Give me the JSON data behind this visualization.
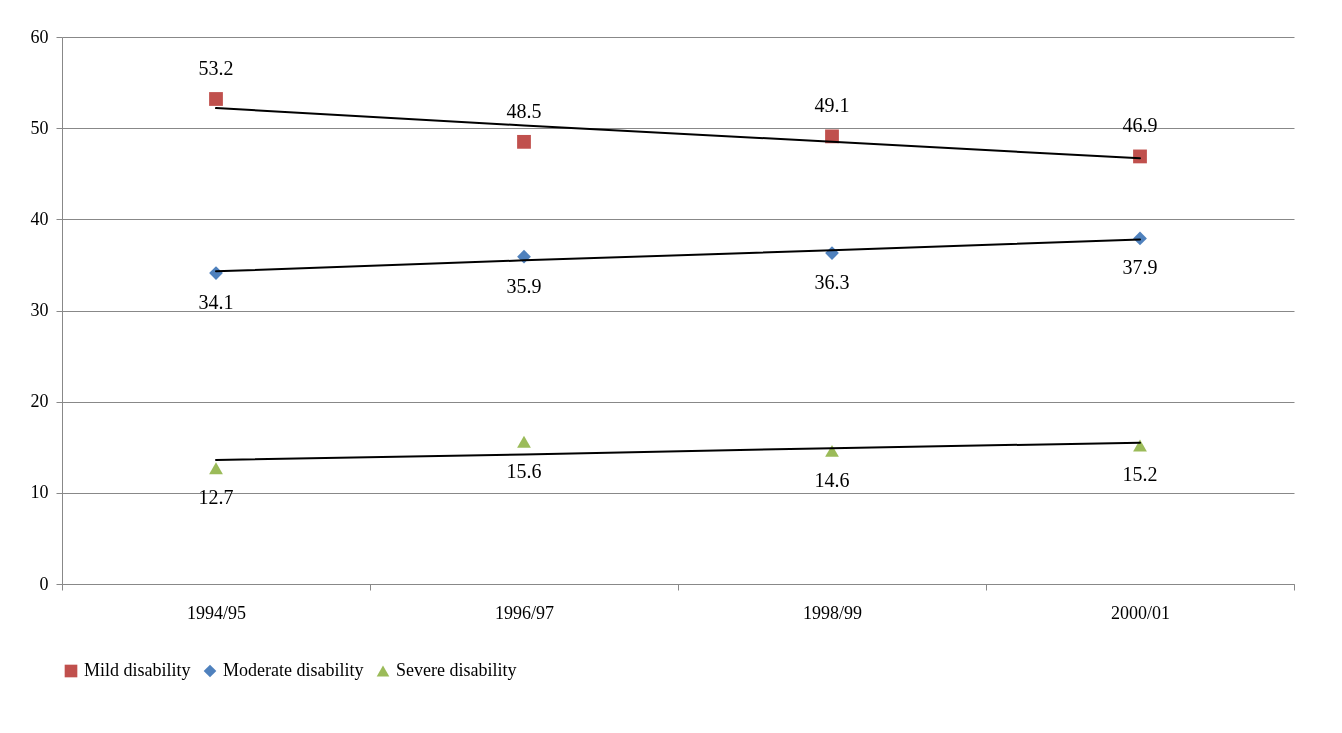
{
  "chart_data": {
    "type": "scatter",
    "categories": [
      "1994/95",
      "1996/97",
      "1998/99",
      "2000/01"
    ],
    "ylim": [
      0,
      60
    ],
    "yticks": [
      0,
      10,
      20,
      30,
      40,
      50,
      60
    ],
    "grid": "y",
    "legend": "bottom",
    "series": [
      {
        "name": "Mild disability",
        "color": "#c0504d",
        "marker": "square",
        "values": [
          53.2,
          48.5,
          49.1,
          46.9
        ],
        "value_labels": [
          "53.2",
          "48.5",
          "49.1",
          "46.9"
        ]
      },
      {
        "name": "Moderate disability",
        "color": "#4f81bd",
        "marker": "diamond",
        "values": [
          34.1,
          35.9,
          36.3,
          37.9
        ],
        "value_labels": [
          "34.1",
          "35.9",
          "36.3",
          "37.9"
        ]
      },
      {
        "name": "Severe disability",
        "color": "#9bbb59",
        "marker": "triangle",
        "values": [
          12.7,
          15.6,
          14.6,
          15.2
        ],
        "value_labels": [
          "12.7",
          "15.6",
          "14.6",
          "15.2"
        ]
      },
      {
        "type": "line",
        "color": "#000000",
        "values": [
          52.2,
          50.3,
          48.5,
          46.7
        ]
      },
      {
        "type": "line",
        "color": "#000000",
        "values": [
          34.3,
          35.5,
          36.6,
          37.8
        ]
      },
      {
        "type": "line",
        "color": "#000000",
        "values": [
          13.6,
          14.2,
          14.9,
          15.5
        ]
      }
    ]
  }
}
